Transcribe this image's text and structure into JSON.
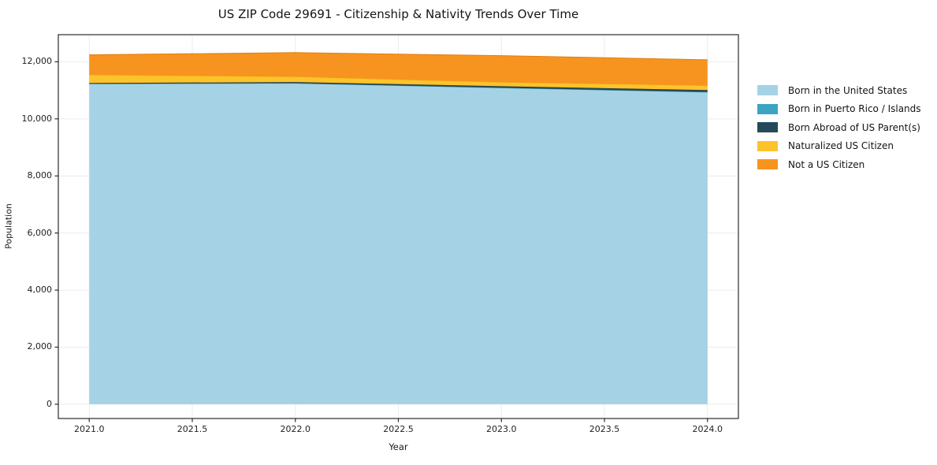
{
  "chart_data": {
    "type": "area",
    "stacked": true,
    "title": "US ZIP Code 29691 - Citizenship & Nativity Trends Over Time",
    "xlabel": "Year",
    "ylabel": "Population",
    "x": [
      2021,
      2022,
      2023,
      2024
    ],
    "series": [
      {
        "name": "Born in the United States",
        "color": "#a6d2e6",
        "edge": "#90c4dc",
        "values": [
          11230,
          11250,
          11090,
          10940
        ]
      },
      {
        "name": "Born in Puerto Rico / Islands",
        "color": "#3da3c2",
        "edge": "#338faa",
        "values": [
          0,
          0,
          0,
          0
        ]
      },
      {
        "name": "Born Abroad of US Parent(s)",
        "color": "#26495a",
        "edge": "#1c3945",
        "values": [
          25,
          40,
          55,
          70
        ]
      },
      {
        "name": "Naturalized US Citizen",
        "color": "#fdc32b",
        "edge": "#e8a915",
        "values": [
          290,
          190,
          140,
          160
        ]
      },
      {
        "name": "Not a US Citizen",
        "color": "#f79420",
        "edge": "#e07d0e",
        "values": [
          700,
          840,
          930,
          900
        ]
      }
    ],
    "x_ticks": {
      "values": [
        2021.0,
        2021.5,
        2022.0,
        2022.5,
        2023.0,
        2023.5,
        2024.0
      ],
      "labels": [
        "2021.0",
        "2021.5",
        "2022.0",
        "2022.5",
        "2023.0",
        "2023.5",
        "2024.0"
      ]
    },
    "y_ticks": {
      "values": [
        0,
        2000,
        4000,
        6000,
        8000,
        10000,
        12000
      ],
      "labels": [
        "0",
        "2,000",
        "4,000",
        "6,000",
        "8,000",
        "10,000",
        "12,000"
      ]
    },
    "xlim": [
      2020.85,
      2024.15
    ],
    "ylim": [
      -500,
      12950
    ],
    "grid": true,
    "legend_position": "right",
    "frame_color": "#2b2b2b",
    "grid_color": "#ececec",
    "background": "#ffffff"
  }
}
